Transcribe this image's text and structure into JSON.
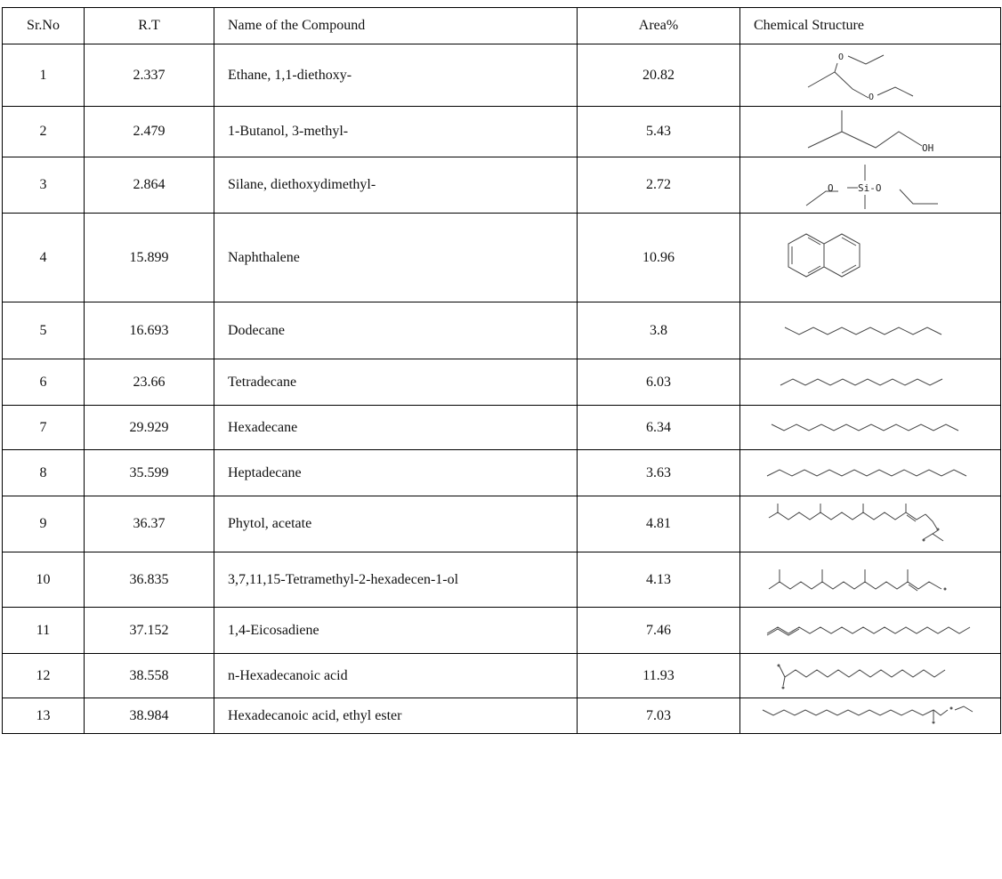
{
  "table": {
    "headers": {
      "sr_no": "Sr.No",
      "rt": "R.T",
      "name": "Name of the Compound",
      "area": "Area%",
      "structure": "Chemical Structure"
    },
    "rows": [
      {
        "sr_no": "1",
        "rt": "2.337",
        "name": "Ethane, 1,1-diethoxy-",
        "area": "20.82",
        "structure_icon": "ethane-diethoxy-structure-icon"
      },
      {
        "sr_no": "2",
        "rt": "2.479",
        "name": "1-Butanol, 3-methyl-",
        "area": "5.43",
        "structure_icon": "butanol-methyl-structure-icon",
        "structure_label": "OH"
      },
      {
        "sr_no": "3",
        "rt": "2.864",
        "name": "Silane, diethoxydimethyl-",
        "area": "2.72",
        "structure_icon": "silane-structure-icon",
        "structure_label_left": "O",
        "structure_label_si": "Si-O"
      },
      {
        "sr_no": "4",
        "rt": "15.899",
        "name": "Naphthalene",
        "area": "10.96",
        "structure_icon": "naphthalene-structure-icon"
      },
      {
        "sr_no": "5",
        "rt": "16.693",
        "name": "Dodecane",
        "area": "3.8",
        "structure_icon": "dodecane-structure-icon"
      },
      {
        "sr_no": "6",
        "rt": "23.66",
        "name": "Tetradecane",
        "area": "6.03",
        "structure_icon": "tetradecane-structure-icon"
      },
      {
        "sr_no": "7",
        "rt": "29.929",
        "name": "Hexadecane",
        "area": "6.34",
        "structure_icon": "hexadecane-structure-icon"
      },
      {
        "sr_no": "8",
        "rt": "35.599",
        "name": "Heptadecane",
        "area": "3.63",
        "structure_icon": "heptadecane-structure-icon"
      },
      {
        "sr_no": "9",
        "rt": "36.37",
        "name": "Phytol, acetate",
        "area": "4.81",
        "structure_icon": "phytol-acetate-structure-icon"
      },
      {
        "sr_no": "10",
        "rt": "36.835",
        "name": "3,7,11,15-Tetramethyl-2-hexadecen-1-ol",
        "area": "4.13",
        "structure_icon": "tetramethyl-hexadecenol-structure-icon"
      },
      {
        "sr_no": "11",
        "rt": "37.152",
        "name": "1,4-Eicosadiene",
        "area": "7.46",
        "structure_icon": "eicosadiene-structure-icon"
      },
      {
        "sr_no": "12",
        "rt": "38.558",
        "name": "n-Hexadecanoic acid",
        "area": "11.93",
        "structure_icon": "hexadecanoic-acid-structure-icon"
      },
      {
        "sr_no": "13",
        "rt": "38.984",
        "name": "Hexadecanoic acid, ethyl ester",
        "area": "7.03",
        "structure_icon": "ethyl-ester-structure-icon"
      }
    ]
  }
}
